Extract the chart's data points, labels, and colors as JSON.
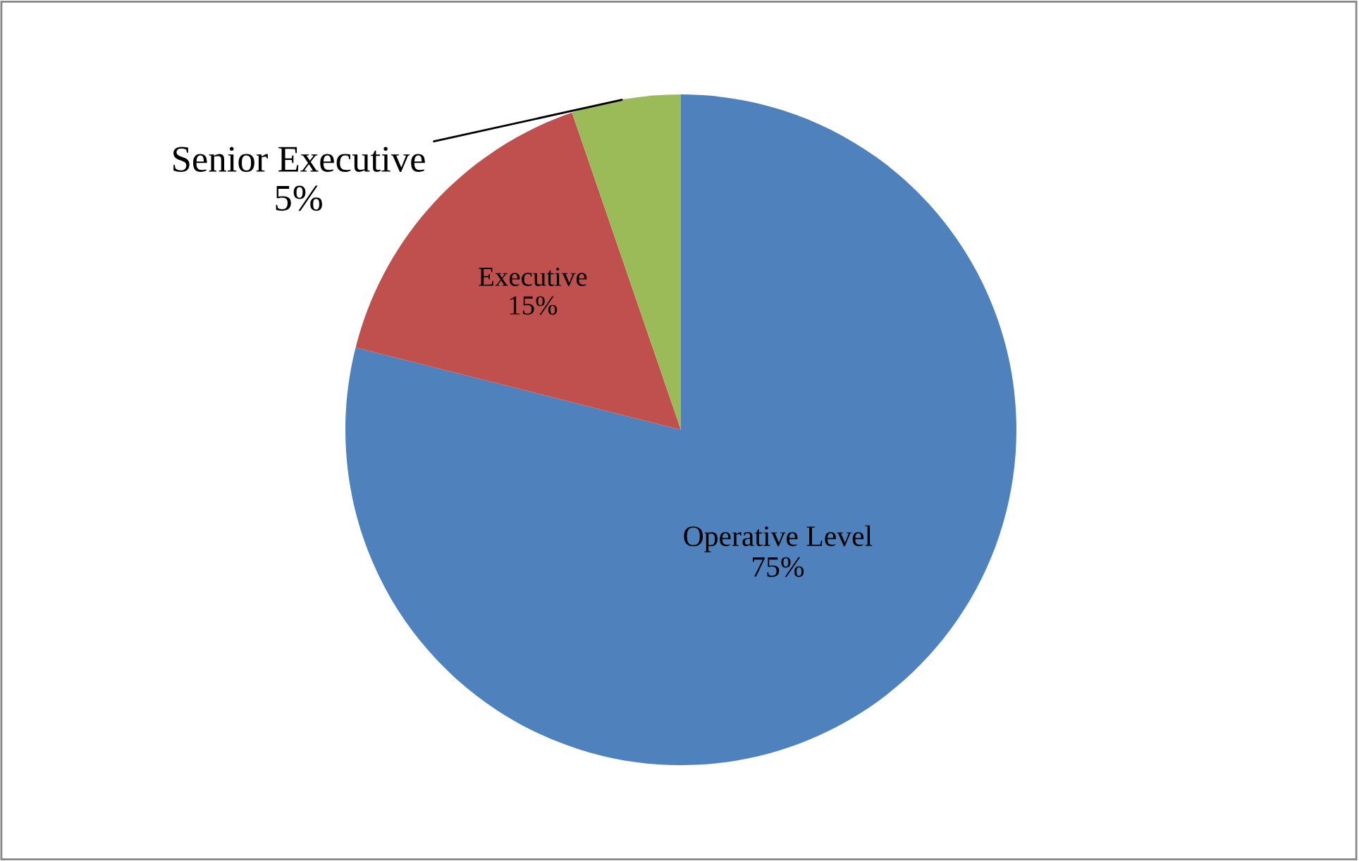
{
  "chart_data": {
    "type": "pie",
    "categories": [
      "Operative Level",
      "Executive",
      "Senior Executive"
    ],
    "values": [
      75,
      15,
      5
    ],
    "value_labels": [
      "75%",
      "15%",
      "5%"
    ],
    "colors": [
      "#4f81bd",
      "#c0504d",
      "#9bbb59"
    ],
    "legend": false
  }
}
